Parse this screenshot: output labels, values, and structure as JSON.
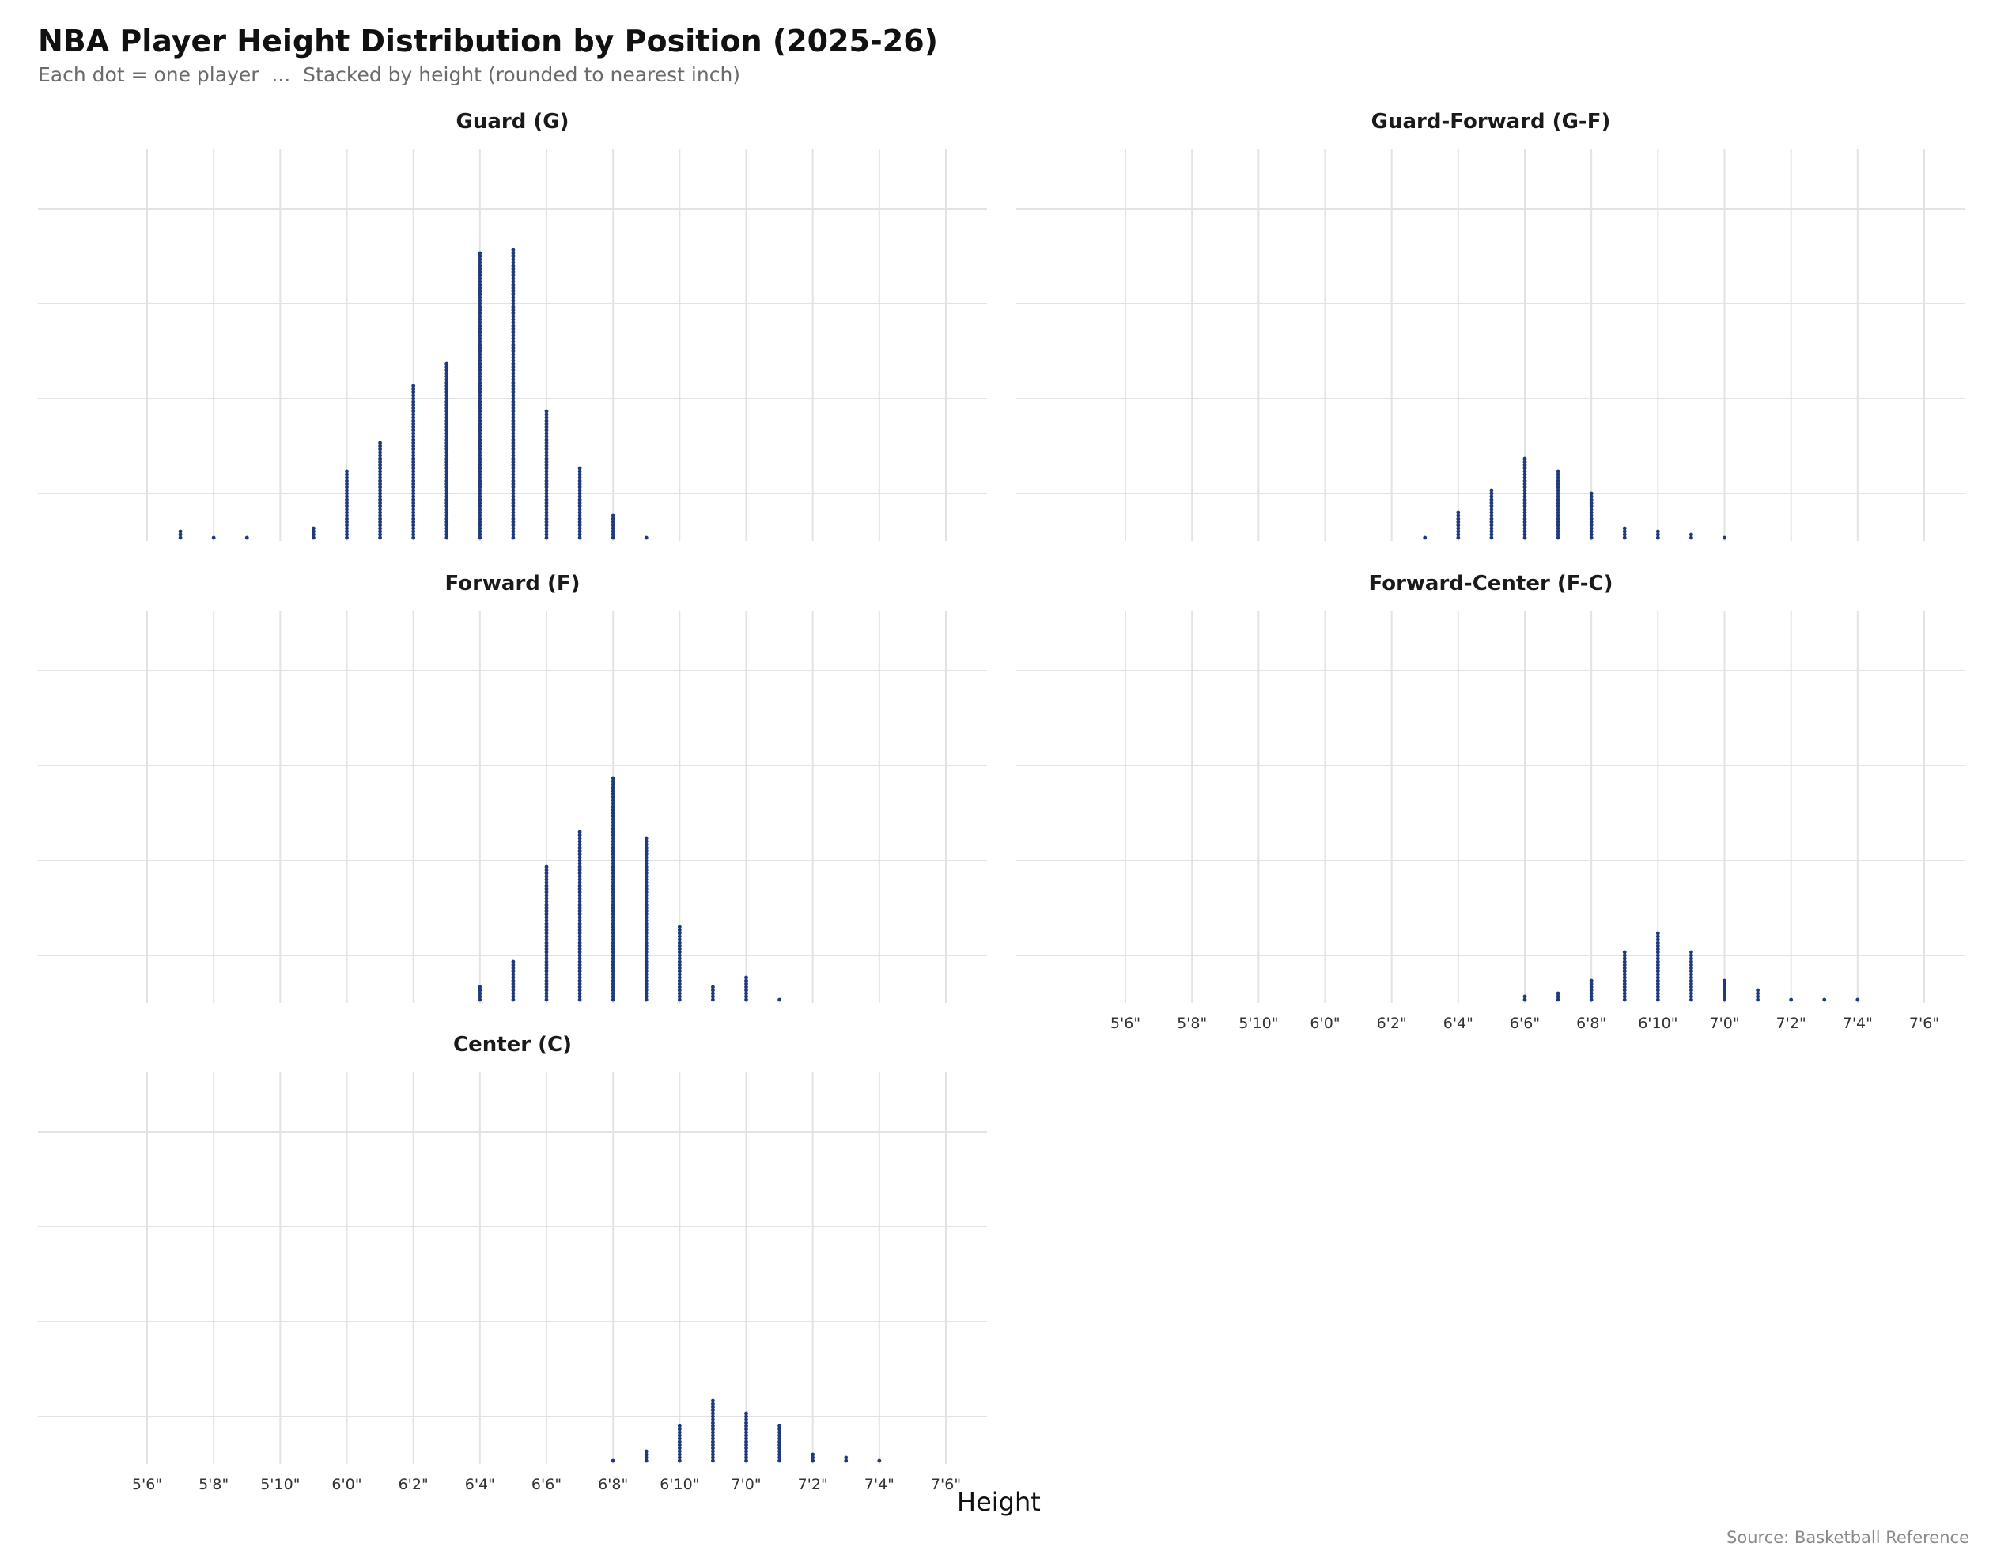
{
  "title": "NBA Player Height Distribution by Position (2025-26)",
  "subtitle": "Each dot = one player  ...  Stacked by height (rounded to nearest inch)",
  "source": "Source: Basketball Reference",
  "colors": {
    "dot": "#1f3a7a",
    "grid": "#e3e3e3",
    "panel_title": "#1a1a1a",
    "tick": "#333333"
  },
  "chart_data": {
    "type": "dot_plot",
    "xlabel": "Height",
    "x_unit": "inches",
    "xlim": [
      66,
      90
    ],
    "x_ticks": [
      {
        "value": 66,
        "label": "5'6\""
      },
      {
        "value": 68,
        "label": "5'8\""
      },
      {
        "value": 70,
        "label": "5'10\""
      },
      {
        "value": 72,
        "label": "6'0\""
      },
      {
        "value": 74,
        "label": "6'2\""
      },
      {
        "value": 76,
        "label": "6'4\""
      },
      {
        "value": 78,
        "label": "6'6\""
      },
      {
        "value": 80,
        "label": "6'8\""
      },
      {
        "value": 82,
        "label": "6'10\""
      },
      {
        "value": 84,
        "label": "7'0\""
      },
      {
        "value": 86,
        "label": "7'2\""
      },
      {
        "value": 88,
        "label": "7'4\""
      },
      {
        "value": 90,
        "label": "7'6\""
      }
    ],
    "grid": true,
    "panels": [
      {
        "title": "Guard (G)",
        "heights": [
          67,
          68,
          69,
          71,
          72,
          73,
          74,
          75,
          76,
          77,
          78,
          79,
          80,
          81
        ],
        "counts": [
          3,
          1,
          1,
          4,
          22,
          31,
          49,
          56,
          91,
          92,
          41,
          23,
          8,
          1
        ]
      },
      {
        "title": "Guard-Forward (G-F)",
        "heights": [
          75,
          76,
          77,
          78,
          79,
          80,
          81,
          82,
          83,
          84
        ],
        "counts": [
          1,
          9,
          16,
          26,
          22,
          15,
          4,
          3,
          2,
          1
        ]
      },
      {
        "title": "Forward (F)",
        "heights": [
          76,
          77,
          78,
          79,
          80,
          81,
          82,
          83,
          84,
          85
        ],
        "counts": [
          5,
          13,
          43,
          54,
          71,
          52,
          24,
          5,
          8,
          1
        ]
      },
      {
        "title": "Forward-Center (F-C)",
        "heights": [
          78,
          79,
          80,
          81,
          82,
          83,
          84,
          85,
          86,
          87,
          88
        ],
        "counts": [
          2,
          3,
          7,
          16,
          22,
          16,
          7,
          4,
          1,
          1,
          1
        ]
      },
      {
        "title": "Center (C)",
        "heights": [
          80,
          81,
          82,
          83,
          84,
          85,
          86,
          87,
          88
        ],
        "counts": [
          1,
          4,
          12,
          20,
          16,
          12,
          3,
          2,
          1
        ]
      }
    ]
  }
}
